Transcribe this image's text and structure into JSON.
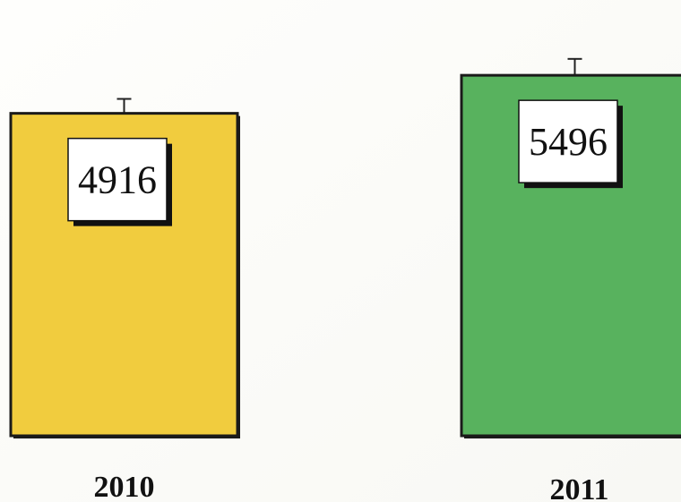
{
  "chart_data": {
    "type": "bar",
    "categories": [
      "2010",
      "2011"
    ],
    "values": [
      4916,
      5496
    ],
    "value_labels": [
      "4916",
      "5496"
    ],
    "error_bars": [
      220,
      250
    ],
    "colors": [
      "#f1cc3e",
      "#58b25e"
    ],
    "ylim": [
      0,
      6000
    ],
    "title": "",
    "xlabel": "",
    "ylabel": "",
    "grid": false,
    "legend": "none"
  }
}
